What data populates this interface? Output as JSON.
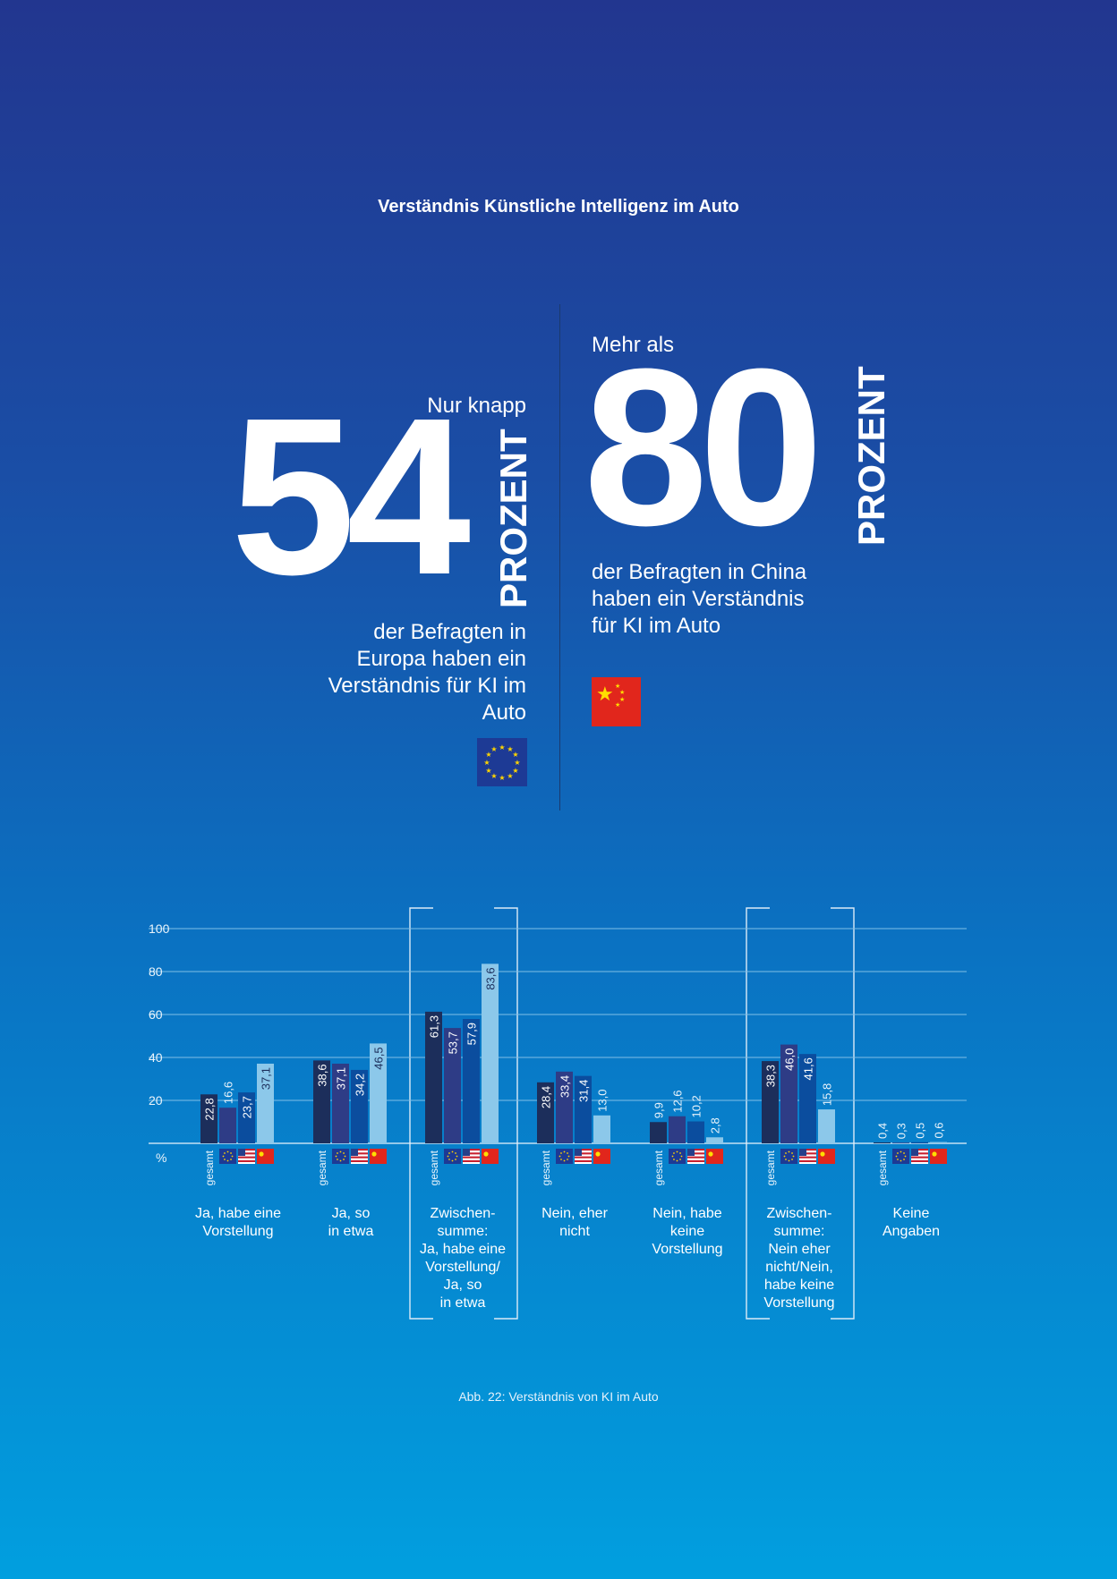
{
  "page": {
    "title": "Verständnis Künstliche Intelligenz im Auto",
    "caption": "Abb. 22: Verständnis von KI im Auto"
  },
  "highlights": {
    "europe": {
      "intro": "Nur knapp",
      "value": "54",
      "unit": "PROZENT",
      "description": "der Befragten in Europa haben ein Verständnis für KI im Auto",
      "flag_icon": "eu-flag-icon"
    },
    "china": {
      "intro": "Mehr als",
      "value": "80",
      "unit": "PROZENT",
      "description": "der Befragten in China haben ein Verständnis für KI im Auto",
      "flag_icon": "china-flag-icon"
    }
  },
  "chart_data": {
    "type": "bar",
    "categories": [
      "Ja, habe eine Vorstellung",
      "Ja, so in etwa",
      "Zwischen- summe: Ja, habe eine Vorstellung/ Ja, so in etwa",
      "Nein, eher nicht",
      "Nein, habe keine Vorstellung",
      "Zwischen- summe: Nein eher nicht/Nein, habe keine Vorstellung",
      "Keine Angaben"
    ],
    "category_lines": [
      [
        "Ja, habe eine",
        "Vorstellung"
      ],
      [
        "Ja, so",
        "in etwa"
      ],
      [
        "Zwischen-",
        "summe:",
        "Ja, habe eine",
        "Vorstellung/",
        "Ja, so",
        "in etwa"
      ],
      [
        "Nein, eher",
        "nicht"
      ],
      [
        "Nein, habe",
        "keine",
        "Vorstellung"
      ],
      [
        "Zwischen-",
        "summe:",
        "Nein eher",
        "nicht/Nein,",
        "habe keine",
        "Vorstellung"
      ],
      [
        "Keine",
        "Angaben"
      ]
    ],
    "highlighted_categories": [
      2,
      5
    ],
    "series": [
      {
        "name": "gesamt",
        "color": "#1c2e5b",
        "values": [
          22.8,
          38.6,
          61.3,
          28.4,
          9.9,
          38.3,
          0.4
        ],
        "labels": [
          "22,8",
          "38,6",
          "61,3",
          "28,4",
          "9,9",
          "38,3",
          "0,4"
        ]
      },
      {
        "name": "EU",
        "color": "#2e3c86",
        "values": [
          16.6,
          37.1,
          53.7,
          33.4,
          12.6,
          46.0,
          0.3
        ],
        "labels": [
          "16,6",
          "37,1",
          "53,7",
          "33,4",
          "12,6",
          "46,0",
          "0,3"
        ]
      },
      {
        "name": "USA",
        "color": "#0b4d9e",
        "values": [
          23.7,
          34.2,
          57.9,
          31.4,
          10.2,
          41.6,
          0.5
        ],
        "labels": [
          "23,7",
          "34,2",
          "57,9",
          "31,4",
          "10,2",
          "41,6",
          "0,5"
        ]
      },
      {
        "name": "China",
        "color": "#8cc8ea",
        "values": [
          37.1,
          46.5,
          83.6,
          13.0,
          2.8,
          15.8,
          0.6
        ],
        "labels": [
          "37,1",
          "46,5",
          "83,6",
          "13,0",
          "2,8",
          "15,8",
          "0,6"
        ]
      }
    ],
    "series_marker_label": "gesamt",
    "series_icons": [
      "eu-flag-icon",
      "usa-flag-icon",
      "china-flag-icon"
    ],
    "yticks": [
      "20",
      "40",
      "60",
      "80",
      "100"
    ],
    "ytick_values": [
      20,
      40,
      60,
      80,
      100
    ],
    "ylabel": "%",
    "ylim": [
      0,
      100
    ],
    "grid": true
  },
  "colors": {
    "gesamt": "#1c2e5b",
    "eu": "#2e3c86",
    "usa": "#0b4d9e",
    "china": "#8cc8ea",
    "gridline": "#7fbfe6"
  }
}
